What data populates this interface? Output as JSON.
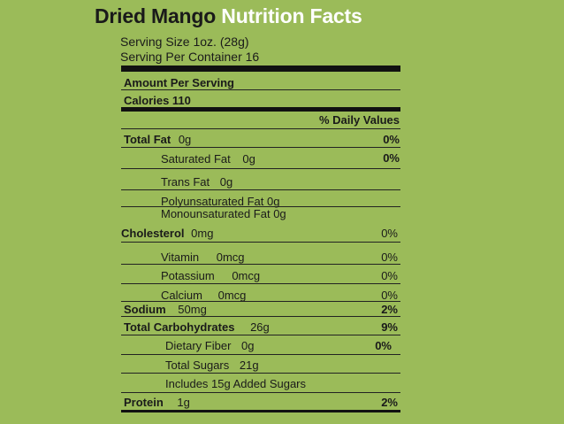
{
  "title": {
    "product": "Dried Mango",
    "heading": "Nutrition Facts"
  },
  "serving_size": "Serving Size 1oz. (28g)",
  "servings_per_container": "Serving Per Container 16",
  "amount_per_serving": "Amount Per Serving",
  "calories": "Calories 110",
  "daily_values_header": "% Daily Values",
  "rows": {
    "total_fat": {
      "label": "Total Fat",
      "amount": "0g",
      "dv": "0%"
    },
    "saturated_fat": {
      "label": "Saturated Fat",
      "amount": "0g",
      "dv": "0%"
    },
    "trans_fat": {
      "label": "Trans Fat",
      "amount": "0g"
    },
    "polyunsaturated_fat": {
      "label": "Polyunsaturated Fat 0g"
    },
    "monounsaturated_fat": {
      "label": "Monounsaturated Fat 0g"
    },
    "cholesterol": {
      "label": "Cholesterol",
      "amount": "0mg",
      "dv": "0%"
    },
    "vitamin": {
      "label": "Vitamin",
      "amount": "0mcg",
      "dv": "0%"
    },
    "potassium": {
      "label": "Potassium",
      "amount": "0mcg",
      "dv": "0%"
    },
    "calcium": {
      "label": "Calcium",
      "amount": "0mcg",
      "dv": "0%"
    },
    "sodium": {
      "label": "Sodium",
      "amount": "50mg",
      "dv": "2%"
    },
    "total_carbohydrates": {
      "label": "Total Carbohydrates",
      "amount": "26g",
      "dv": "9%"
    },
    "dietary_fiber": {
      "label": "Dietary Fiber",
      "amount": "0g",
      "dv": "0%"
    },
    "total_sugars": {
      "label": "Total Sugars",
      "amount": "21g"
    },
    "added_sugars": {
      "label": "Includes 15g Added Sugars"
    },
    "protein": {
      "label": "Protein",
      "amount": "1g",
      "dv": "2%"
    }
  }
}
